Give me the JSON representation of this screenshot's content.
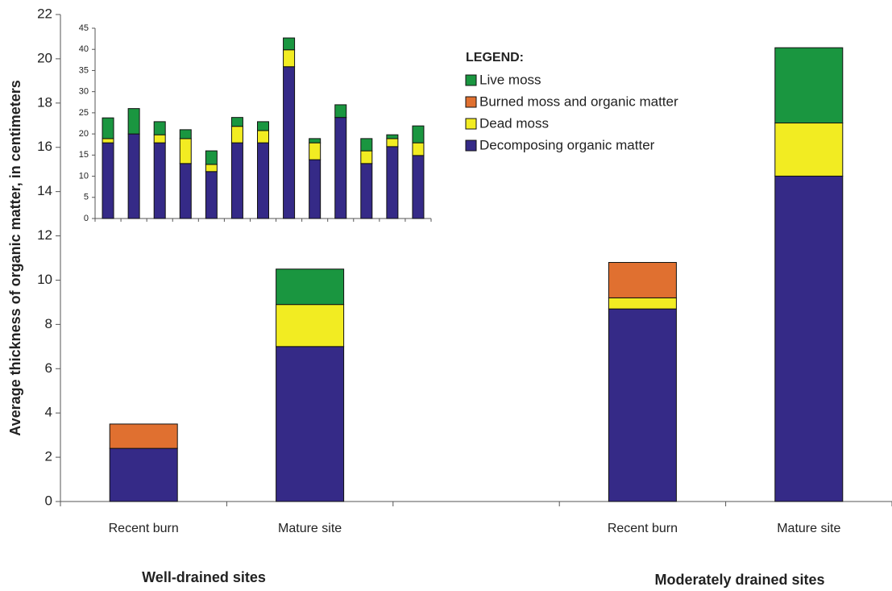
{
  "chart_data": [
    {
      "type": "stacked_bar",
      "y_label": "Average thickness of organic matter, in centimeters",
      "categories": [
        "Recent burn",
        "Mature site",
        null,
        "Recent burn",
        "Mature site"
      ],
      "series": [
        {
          "name": "Decomposing organic matter",
          "color": "#352a87",
          "values": [
            2.4,
            7.0,
            null,
            8.7,
            14.7
          ]
        },
        {
          "name": "Dead moss",
          "color": "#f2ec22",
          "values": [
            0,
            1.9,
            null,
            0.5,
            2.4
          ]
        },
        {
          "name": "Burned moss and organic matter",
          "color": "#e07030",
          "values": [
            1.1,
            0,
            null,
            1.6,
            0
          ]
        },
        {
          "name": "Live moss",
          "color": "#1a9640",
          "values": [
            0,
            1.6,
            null,
            0,
            3.4
          ]
        }
      ],
      "legend_title": "LEGEND:",
      "annotations": [
        "Well-drained sites",
        "Moderately drained sites"
      ],
      "ylim": [
        0,
        22
      ],
      "yticks": [
        0,
        2,
        4,
        6,
        8,
        10,
        12,
        14,
        16,
        18,
        20,
        22
      ]
    },
    {
      "type": "stacked_bar",
      "categories": [
        null,
        null,
        null,
        null,
        null,
        null,
        null,
        null,
        null,
        null,
        null,
        null,
        null
      ],
      "series": [
        {
          "color": "#352a87",
          "values": [
            17.9,
            20.0,
            17.9,
            13.0,
            11.1,
            17.9,
            17.9,
            35.9,
            13.9,
            23.9,
            13.0,
            17.0,
            14.9
          ]
        },
        {
          "color": "#f2ec22",
          "values": [
            1,
            0,
            1.9,
            5.9,
            1.7,
            3.9,
            2.9,
            4,
            4,
            0,
            3,
            1.9,
            3
          ]
        },
        {
          "color": "#1a9640",
          "values": [
            4.9,
            6,
            3.1,
            2.1,
            3.2,
            2.1,
            2.1,
            2.8,
            1,
            3,
            2.9,
            0.9,
            4
          ]
        }
      ],
      "ylim": [
        0,
        45
      ],
      "yticks": [
        0,
        5,
        10,
        15,
        20,
        25,
        30,
        35,
        40,
        45
      ]
    }
  ]
}
